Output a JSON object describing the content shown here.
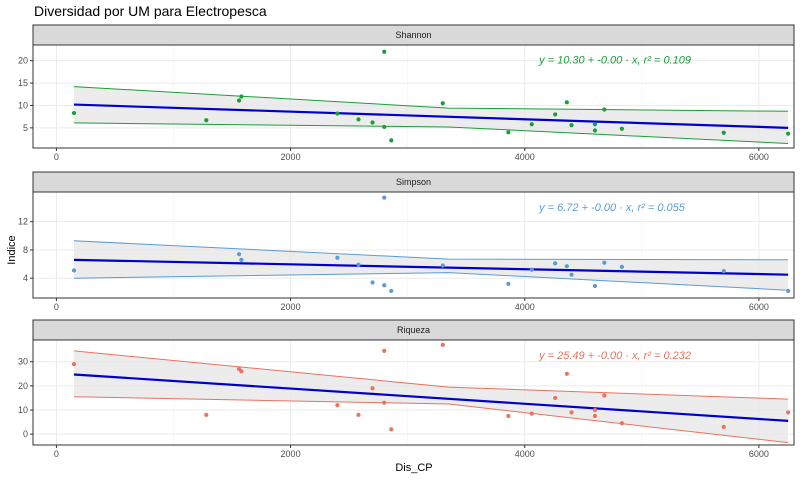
{
  "title": "Diversidad por UM para Electropesca",
  "xlabel": "Dis_CP",
  "ylabel": "Indice",
  "colors": {
    "shannon": "#1a9e3a",
    "simpson": "#5b9bd5",
    "riqueza": "#e8735f",
    "trend": "#0000cc",
    "band_fill": "#e6e6e6",
    "strip_fill": "#d9d9d9",
    "panel_border": "#333333",
    "grid": "#ebebeb"
  },
  "chart_data": [
    {
      "type": "scatter",
      "panel": "Shannon",
      "equation": "y = 10.30 + -0.00 · x,  r² = 0.109",
      "xlim": [
        -200,
        6300
      ],
      "ylim": [
        0.5,
        23.5
      ],
      "x_ticks": [
        0,
        2000,
        4000,
        6000
      ],
      "x_tick_labels": [
        "0",
        "2000",
        "4000",
        "6000"
      ],
      "y_ticks": [
        5,
        10,
        15,
        20
      ],
      "y_tick_labels": [
        "5",
        "10",
        "15",
        "20"
      ],
      "points": [
        [
          150,
          8.3
        ],
        [
          1280,
          6.7
        ],
        [
          1560,
          11.1
        ],
        [
          1580,
          12.0
        ],
        [
          2400,
          8.2
        ],
        [
          2580,
          6.9
        ],
        [
          2700,
          6.2
        ],
        [
          2800,
          22.0
        ],
        [
          2800,
          5.2
        ],
        [
          2860,
          2.2
        ],
        [
          3300,
          10.5
        ],
        [
          3860,
          4.0
        ],
        [
          4060,
          5.8
        ],
        [
          4260,
          8.0
        ],
        [
          4360,
          10.7
        ],
        [
          4400,
          5.6
        ],
        [
          4600,
          5.8
        ],
        [
          4600,
          4.4
        ],
        [
          4680,
          9.1
        ],
        [
          4830,
          4.8
        ],
        [
          5700,
          3.9
        ],
        [
          6250,
          3.7
        ]
      ],
      "trend": {
        "x": [
          150,
          6250
        ],
        "y": [
          10.2,
          5.0
        ]
      },
      "upper": {
        "x": [
          150,
          3350,
          6250
        ],
        "y": [
          14.2,
          9.4,
          8.7
        ]
      },
      "lower": {
        "x": [
          150,
          3350,
          6250
        ],
        "y": [
          6.1,
          5.2,
          1.5
        ]
      }
    },
    {
      "type": "scatter",
      "panel": "Simpson",
      "equation": "y = 6.72 + -0.00 · x,  r² = 0.055",
      "xlim": [
        -200,
        6300
      ],
      "ylim": [
        1.2,
        16.2
      ],
      "x_ticks": [
        0,
        2000,
        4000,
        6000
      ],
      "x_tick_labels": [
        "0",
        "2000",
        "4000",
        "6000"
      ],
      "y_ticks": [
        4,
        8,
        12
      ],
      "y_tick_labels": [
        "4",
        "8",
        "12"
      ],
      "points": [
        [
          150,
          5.1
        ],
        [
          1560,
          7.4
        ],
        [
          1580,
          6.6
        ],
        [
          2400,
          6.9
        ],
        [
          2580,
          5.9
        ],
        [
          2700,
          3.4
        ],
        [
          2800,
          15.4
        ],
        [
          2800,
          3.0
        ],
        [
          2860,
          2.2
        ],
        [
          3300,
          5.8
        ],
        [
          3860,
          3.2
        ],
        [
          4060,
          5.2
        ],
        [
          4260,
          6.1
        ],
        [
          4360,
          5.7
        ],
        [
          4400,
          4.5
        ],
        [
          4600,
          2.9
        ],
        [
          4680,
          6.2
        ],
        [
          4830,
          5.6
        ],
        [
          5700,
          5.0
        ],
        [
          6250,
          2.2
        ]
      ],
      "trend": {
        "x": [
          150,
          6250
        ],
        "y": [
          6.6,
          4.5
        ]
      },
      "upper": {
        "x": [
          150,
          3350,
          6250
        ],
        "y": [
          9.3,
          6.7,
          6.6
        ]
      },
      "lower": {
        "x": [
          150,
          3350,
          6250
        ],
        "y": [
          4.0,
          4.8,
          2.3
        ]
      }
    },
    {
      "type": "scatter",
      "panel": "Riqueza",
      "equation": "y = 25.49 + -0.00 · x,  r² = 0.232",
      "xlim": [
        -200,
        6300
      ],
      "ylim": [
        -4.5,
        39
      ],
      "x_ticks": [
        0,
        2000,
        4000,
        6000
      ],
      "x_tick_labels": [
        "0",
        "2000",
        "4000",
        "6000"
      ],
      "y_ticks": [
        0,
        10,
        20,
        30
      ],
      "y_tick_labels": [
        "0",
        "10",
        "20",
        "30"
      ],
      "points": [
        [
          150,
          29.0
        ],
        [
          1280,
          8.0
        ],
        [
          1560,
          27.0
        ],
        [
          1580,
          26.0
        ],
        [
          2400,
          12.0
        ],
        [
          2580,
          8.0
        ],
        [
          2700,
          19.0
        ],
        [
          2800,
          34.5
        ],
        [
          2800,
          13.0
        ],
        [
          2860,
          2.0
        ],
        [
          3300,
          37.0
        ],
        [
          3860,
          7.5
        ],
        [
          4060,
          8.5
        ],
        [
          4260,
          15.0
        ],
        [
          4360,
          25.0
        ],
        [
          4400,
          9.0
        ],
        [
          4600,
          7.5
        ],
        [
          4600,
          10.0
        ],
        [
          4680,
          16.0
        ],
        [
          4830,
          4.5
        ],
        [
          5700,
          3.0
        ],
        [
          6250,
          9.0
        ]
      ],
      "trend": {
        "x": [
          150,
          6250
        ],
        "y": [
          24.7,
          5.5
        ]
      },
      "upper": {
        "x": [
          150,
          3350,
          6250
        ],
        "y": [
          34.5,
          19.5,
          14.5
        ]
      },
      "lower": {
        "x": [
          150,
          3350,
          6250
        ],
        "y": [
          15.5,
          12.5,
          -3.5
        ]
      }
    }
  ]
}
